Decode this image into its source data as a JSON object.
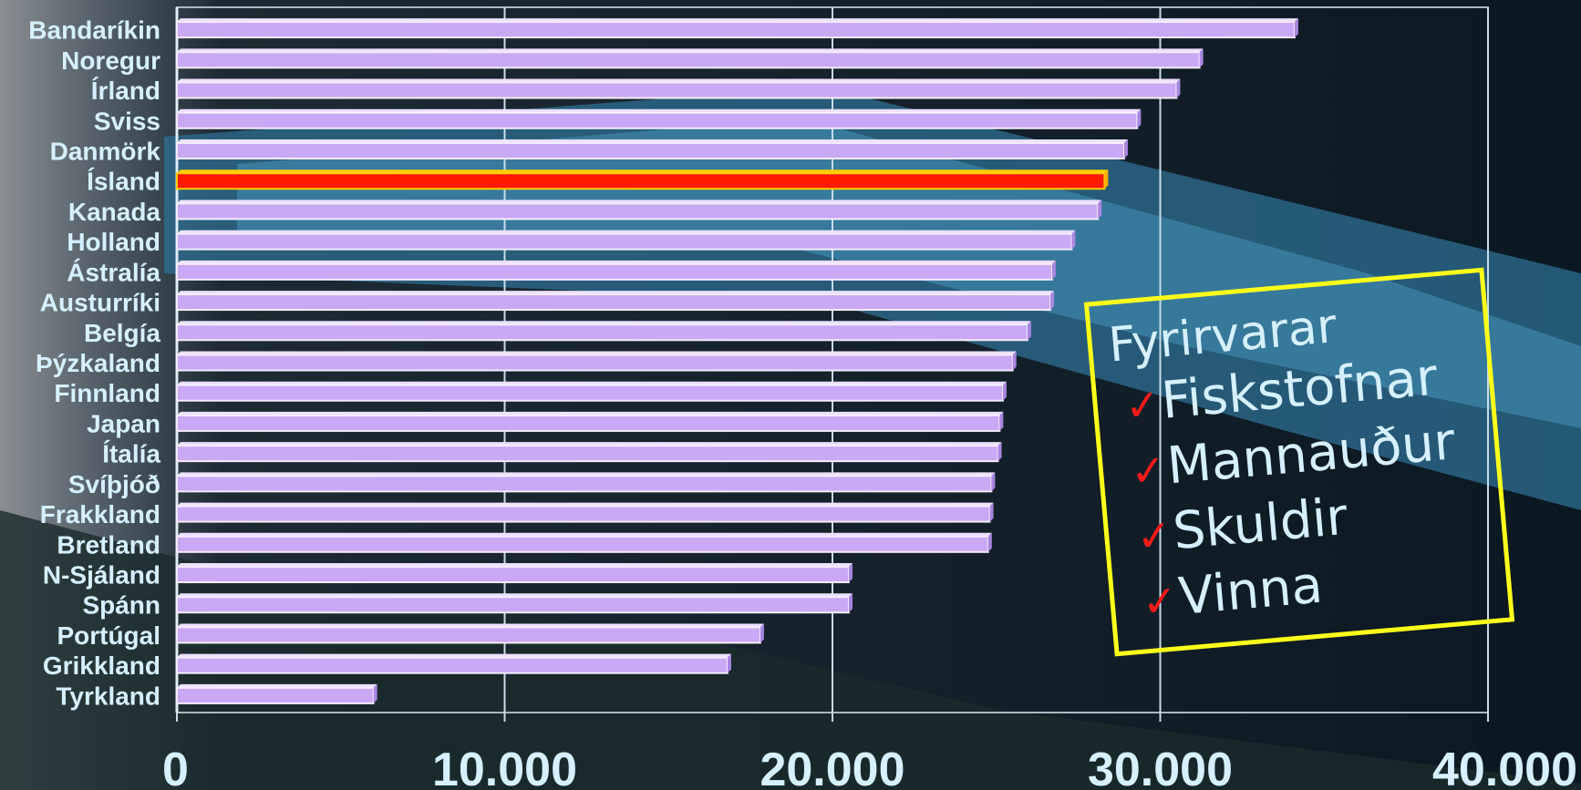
{
  "chart_data": {
    "type": "bar",
    "orientation": "horizontal",
    "categories": [
      "Bandaríkin",
      "Noregur",
      "Írland",
      "Sviss",
      "Danmörk",
      "Ísland",
      "Kanada",
      "Holland",
      "Ástralía",
      "Austurríki",
      "Belgía",
      "Þýzkaland",
      "Finnland",
      "Japan",
      "Ítalía",
      "Svíþjóð",
      "Frakkland",
      "Bretland",
      "N-Sjáland",
      "Spánn",
      "Portúgal",
      "Grikkland",
      "Tyrkland"
    ],
    "values": [
      34100,
      31200,
      30500,
      29300,
      28900,
      28300,
      28100,
      27300,
      26700,
      26650,
      25950,
      25500,
      25200,
      25100,
      25050,
      24850,
      24800,
      24750,
      20500,
      20500,
      17800,
      16800,
      6000
    ],
    "highlight": "Ísland",
    "bar_color": "#c9a8f5",
    "highlight_color": "#ff1a00",
    "highlight_border_color": "#ffcc00",
    "xlim": [
      0,
      40000
    ],
    "xticks": [
      0,
      10000,
      20000,
      30000,
      40000
    ],
    "xtick_labels": [
      "0",
      "10.000",
      "20.000",
      "30.000",
      "40.000"
    ],
    "grid": true,
    "title": "",
    "xlabel": "",
    "ylabel": ""
  },
  "note": {
    "title": "Fyrirvarar",
    "check_icon": "check-icon",
    "check_color": "#ff1a1a",
    "border_color": "#ffff1a",
    "items": [
      "Fiskstofnar",
      "Mannauður",
      "Skuldir",
      "Vinna"
    ]
  }
}
